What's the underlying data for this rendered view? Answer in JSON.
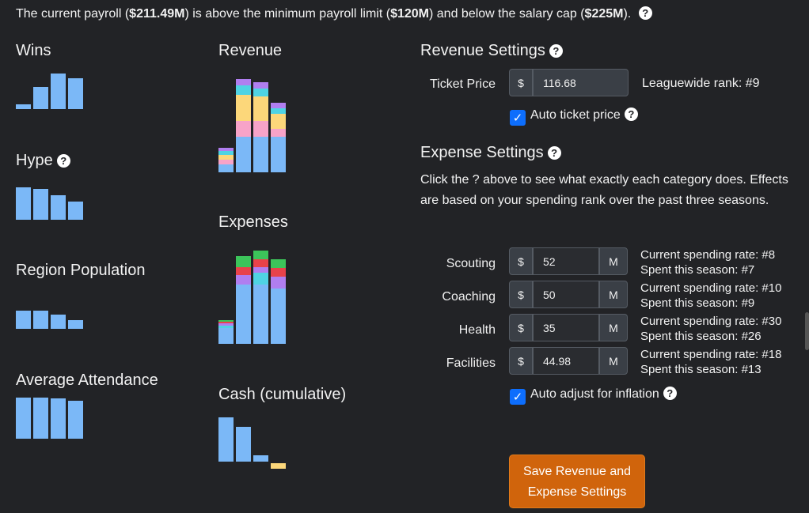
{
  "payroll": {
    "pre": "The current payroll (",
    "payroll": "$211.49M",
    "mid1": ") is above the minimum payroll limit (",
    "minimum": "$120M",
    "mid2": ") and below the salary cap (",
    "cap": "$225M",
    "post": ")."
  },
  "charts": {
    "wins": "Wins",
    "hype": "Hype",
    "region_population": "Region Population",
    "average_attendance": "Average Attendance",
    "revenue": "Revenue",
    "expenses": "Expenses",
    "cash": "Cash (cumulative)"
  },
  "chart_data": [
    {
      "type": "bar",
      "title": "Wins",
      "values": [
        0.08,
        0.5,
        0.9,
        0.78
      ]
    },
    {
      "type": "bar",
      "title": "Hype",
      "values": [
        0.85,
        0.8,
        0.62,
        0.5
      ]
    },
    {
      "type": "bar",
      "title": "Region Population",
      "values": [
        0.45,
        0.45,
        0.35,
        0.2
      ]
    },
    {
      "type": "bar",
      "title": "Average Attendance",
      "values": [
        1.0,
        1.0,
        0.98,
        0.93
      ]
    },
    {
      "type": "stacked-bar",
      "title": "Revenue"
    },
    {
      "type": "stacked-bar",
      "title": "Expenses"
    },
    {
      "type": "bar",
      "title": "Cash (cumulative)",
      "values": [
        0.95,
        0.72,
        0.15,
        -0.1
      ]
    }
  ],
  "revenue_settings": {
    "title": "Revenue Settings",
    "ticket_label": "Ticket Price",
    "currency": "$",
    "ticket_value": "116.68",
    "rank": "Leaguewide rank: #9",
    "auto_ticket": "Auto ticket price"
  },
  "expense_settings": {
    "title": "Expense Settings",
    "desc": "Click the ? above to see what exactly each category does. Effects are based on your spending rank over the past three seasons.",
    "unit": "M",
    "items": [
      {
        "label": "Scouting",
        "value": "52",
        "rate": "Current spending rate: #8",
        "spent": "Spent this season: #7"
      },
      {
        "label": "Coaching",
        "value": "50",
        "rate": "Current spending rate: #10",
        "spent": "Spent this season: #9"
      },
      {
        "label": "Health",
        "value": "35",
        "rate": "Current spending rate: #30",
        "spent": "Spent this season: #26"
      },
      {
        "label": "Facilities",
        "value": "44.98",
        "rate": "Current spending rate: #18",
        "spent": "Spent this season: #13"
      }
    ],
    "auto_inflation": "Auto adjust for inflation"
  },
  "save_button": "Save Revenue and Expense Settings",
  "colors": {
    "background": "#222326",
    "bar_blue": "#7bb8f7",
    "save_orange": "#d0640c",
    "checkbox_blue": "#0d6efd"
  }
}
